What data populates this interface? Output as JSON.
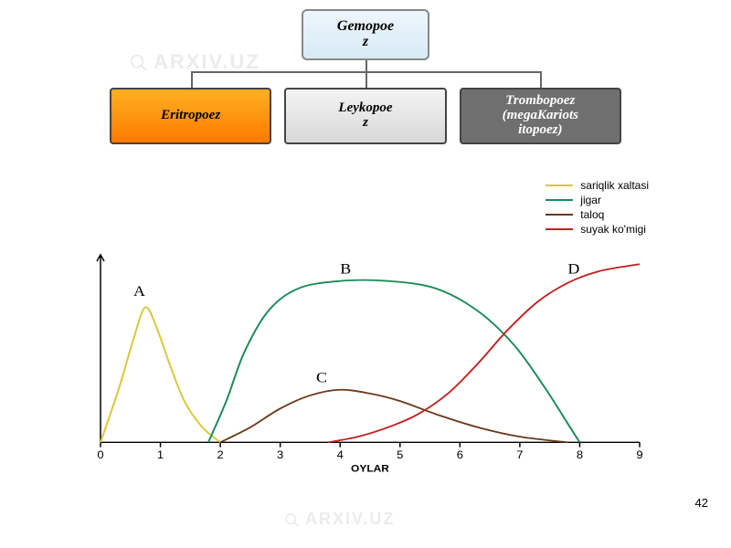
{
  "hierarchy": {
    "root": {
      "label": "Gemopoe\nz",
      "bg": "linear-gradient(#eef6fc,#d8eaf5)",
      "fg": "#000000"
    },
    "children": [
      {
        "label": "Eritropoez",
        "bg": "linear-gradient(#ffb020,#ff7a00)",
        "fg": "#000000"
      },
      {
        "label": "Leykopoe\nz",
        "bg": "linear-gradient(#f4f4f4,#d8d8d8)",
        "fg": "#000000"
      },
      {
        "label": "Trombopoez\n(megaKariots\nitopoez)",
        "bg": "#6f6f6f",
        "fg": "#ffffff"
      }
    ],
    "connector_color": "#666666"
  },
  "chart": {
    "type": "line",
    "background": "#ffffff",
    "xlabel": "OYLAR",
    "xlim": [
      0,
      9
    ],
    "xticks": [
      0,
      1,
      2,
      3,
      4,
      5,
      6,
      7,
      8,
      9
    ],
    "axis_color": "#000000",
    "legend": [
      {
        "label": "sariqlik xaltasi",
        "color": "#d9c73a"
      },
      {
        "label": "jigar",
        "color": "#1a8a5a"
      },
      {
        "label": "taloq",
        "color": "#6b3a1a"
      },
      {
        "label": "suyak ko'migi",
        "color": "#c02020"
      }
    ],
    "curves": {
      "A": {
        "label": "A",
        "label_pos": [
          0.55,
          0.78
        ],
        "color": "#d9c73a",
        "points": [
          [
            0,
            0
          ],
          [
            0.3,
            0.28
          ],
          [
            0.55,
            0.55
          ],
          [
            0.75,
            0.72
          ],
          [
            0.95,
            0.6
          ],
          [
            1.15,
            0.42
          ],
          [
            1.4,
            0.22
          ],
          [
            1.7,
            0.08
          ],
          [
            2.0,
            0.0
          ]
        ]
      },
      "B": {
        "label": "B",
        "label_pos": [
          4.0,
          0.9
        ],
        "color": "#1a8a5a",
        "points": [
          [
            1.8,
            0.0
          ],
          [
            2.1,
            0.22
          ],
          [
            2.4,
            0.48
          ],
          [
            2.8,
            0.7
          ],
          [
            3.3,
            0.82
          ],
          [
            4.0,
            0.86
          ],
          [
            4.8,
            0.86
          ],
          [
            5.6,
            0.82
          ],
          [
            6.3,
            0.7
          ],
          [
            6.9,
            0.52
          ],
          [
            7.4,
            0.3
          ],
          [
            7.8,
            0.1
          ],
          [
            8.0,
            0.0
          ]
        ]
      },
      "C": {
        "label": "C",
        "label_pos": [
          3.6,
          0.32
        ],
        "color": "#6b3a1a",
        "points": [
          [
            2.0,
            0.0
          ],
          [
            2.5,
            0.08
          ],
          [
            3.0,
            0.18
          ],
          [
            3.5,
            0.25
          ],
          [
            4.0,
            0.28
          ],
          [
            4.5,
            0.26
          ],
          [
            5.0,
            0.22
          ],
          [
            5.6,
            0.15
          ],
          [
            6.3,
            0.08
          ],
          [
            7.0,
            0.03
          ],
          [
            7.8,
            0.0
          ]
        ]
      },
      "D": {
        "label": "D",
        "label_pos": [
          7.8,
          0.9
        ],
        "color": "#c02020",
        "points": [
          [
            3.8,
            0.0
          ],
          [
            4.3,
            0.03
          ],
          [
            4.8,
            0.08
          ],
          [
            5.3,
            0.15
          ],
          [
            5.8,
            0.26
          ],
          [
            6.3,
            0.42
          ],
          [
            6.8,
            0.6
          ],
          [
            7.3,
            0.75
          ],
          [
            7.8,
            0.85
          ],
          [
            8.3,
            0.91
          ],
          [
            8.8,
            0.94
          ],
          [
            9.0,
            0.95
          ]
        ]
      }
    }
  },
  "watermark": {
    "text": "ARXIV.UZ",
    "fontsize": 22,
    "color": "rgba(120,120,120,0.15)"
  },
  "page_number": "42"
}
